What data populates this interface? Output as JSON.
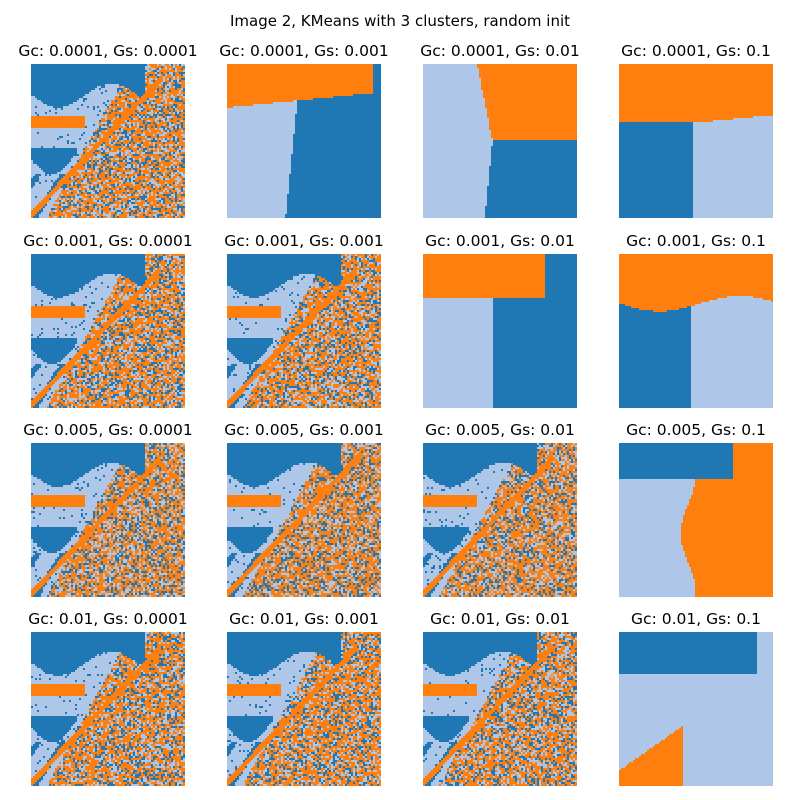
{
  "figure": {
    "title": "Image 2, KMeans with 3 clusters, random init",
    "colors": {
      "c0": "#1f77b4",
      "c1": "#aec7e8",
      "c2": "#ff7f0e"
    }
  },
  "panels": [
    {
      "title": "Gc: 0.0001, Gs: 0.0001",
      "gc": 0.0001,
      "gs": 0.0001
    },
    {
      "title": "Gc: 0.0001, Gs: 0.001",
      "gc": 0.0001,
      "gs": 0.001
    },
    {
      "title": "Gc: 0.0001, Gs: 0.01",
      "gc": 0.0001,
      "gs": 0.01
    },
    {
      "title": "Gc: 0.0001, Gs: 0.1",
      "gc": 0.0001,
      "gs": 0.1
    },
    {
      "title": "Gc: 0.001, Gs: 0.0001",
      "gc": 0.001,
      "gs": 0.0001
    },
    {
      "title": "Gc: 0.001, Gs: 0.001",
      "gc": 0.001,
      "gs": 0.001
    },
    {
      "title": "Gc: 0.001, Gs: 0.01",
      "gc": 0.001,
      "gs": 0.01
    },
    {
      "title": "Gc: 0.001, Gs: 0.1",
      "gc": 0.001,
      "gs": 0.1
    },
    {
      "title": "Gc: 0.005, Gs: 0.0001",
      "gc": 0.005,
      "gs": 0.0001
    },
    {
      "title": "Gc: 0.005, Gs: 0.001",
      "gc": 0.005,
      "gs": 0.001
    },
    {
      "title": "Gc: 0.005, Gs: 0.01",
      "gc": 0.005,
      "gs": 0.01
    },
    {
      "title": "Gc: 0.005, Gs: 0.1",
      "gc": 0.005,
      "gs": 0.1
    },
    {
      "title": "Gc: 0.01, Gs: 0.0001",
      "gc": 0.01,
      "gs": 0.0001
    },
    {
      "title": "Gc: 0.01, Gs: 0.001",
      "gc": 0.01,
      "gs": 0.001
    },
    {
      "title": "Gc: 0.01, Gs: 0.01",
      "gc": 0.01,
      "gs": 0.01
    },
    {
      "title": "Gc: 0.01, Gs: 0.1",
      "gc": 0.01,
      "gs": 0.1
    }
  ]
}
